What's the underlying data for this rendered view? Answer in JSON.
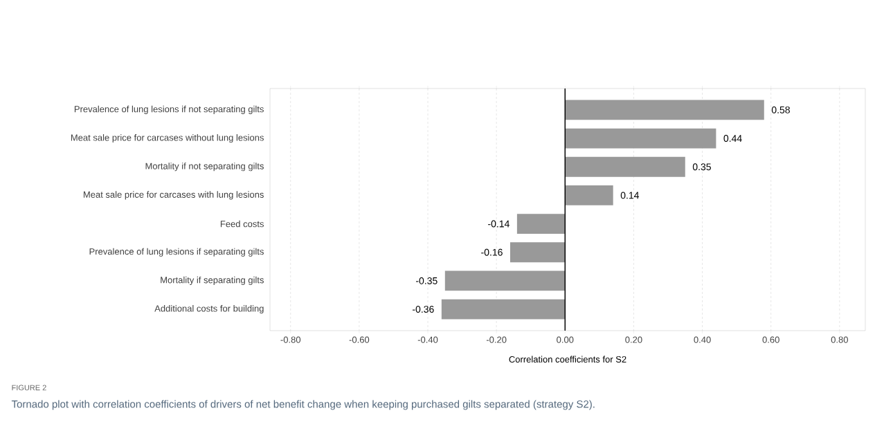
{
  "chart_data": {
    "type": "bar",
    "orientation": "horizontal",
    "categories": [
      "Prevalence of lung lesions if not separating gilts",
      "Meat sale price for carcases without lung lesions",
      "Mortality if not separating gilts",
      "Meat sale price for carcases with lung lesions",
      "Feed costs",
      "Prevalence of lung lesions if separating gilts",
      "Mortality if separating gilts",
      "Additional costs for building"
    ],
    "values": [
      0.58,
      0.44,
      0.35,
      0.14,
      -0.14,
      -0.16,
      -0.35,
      -0.36
    ],
    "color": "#999999",
    "data_labels": true,
    "xlabel": "Correlation coefficients for S2",
    "xlim": [
      -0.86,
      0.875
    ],
    "xticks": [
      {
        "value": -0.8,
        "label": "-0.80"
      },
      {
        "value": -0.6,
        "label": "-0.60"
      },
      {
        "value": -0.4,
        "label": "-0.40"
      },
      {
        "value": -0.2,
        "label": "-0.20"
      },
      {
        "value": 0,
        "label": "0.00"
      },
      {
        "value": 0.2,
        "label": "0.20"
      },
      {
        "value": 0.4,
        "label": "0.40"
      },
      {
        "value": 0.6,
        "label": "0.60"
      },
      {
        "value": 0.8,
        "label": "0.80"
      }
    ],
    "grid": "x",
    "ref_lines": [
      {
        "axis": "x",
        "value": 0,
        "color": "#000000"
      }
    ],
    "annotations": [
      "FIGURE 2",
      "Tornado plot with correlation coefficients of drivers of net benefit change when keeping purchased gilts separated (strategy S2)."
    ]
  }
}
